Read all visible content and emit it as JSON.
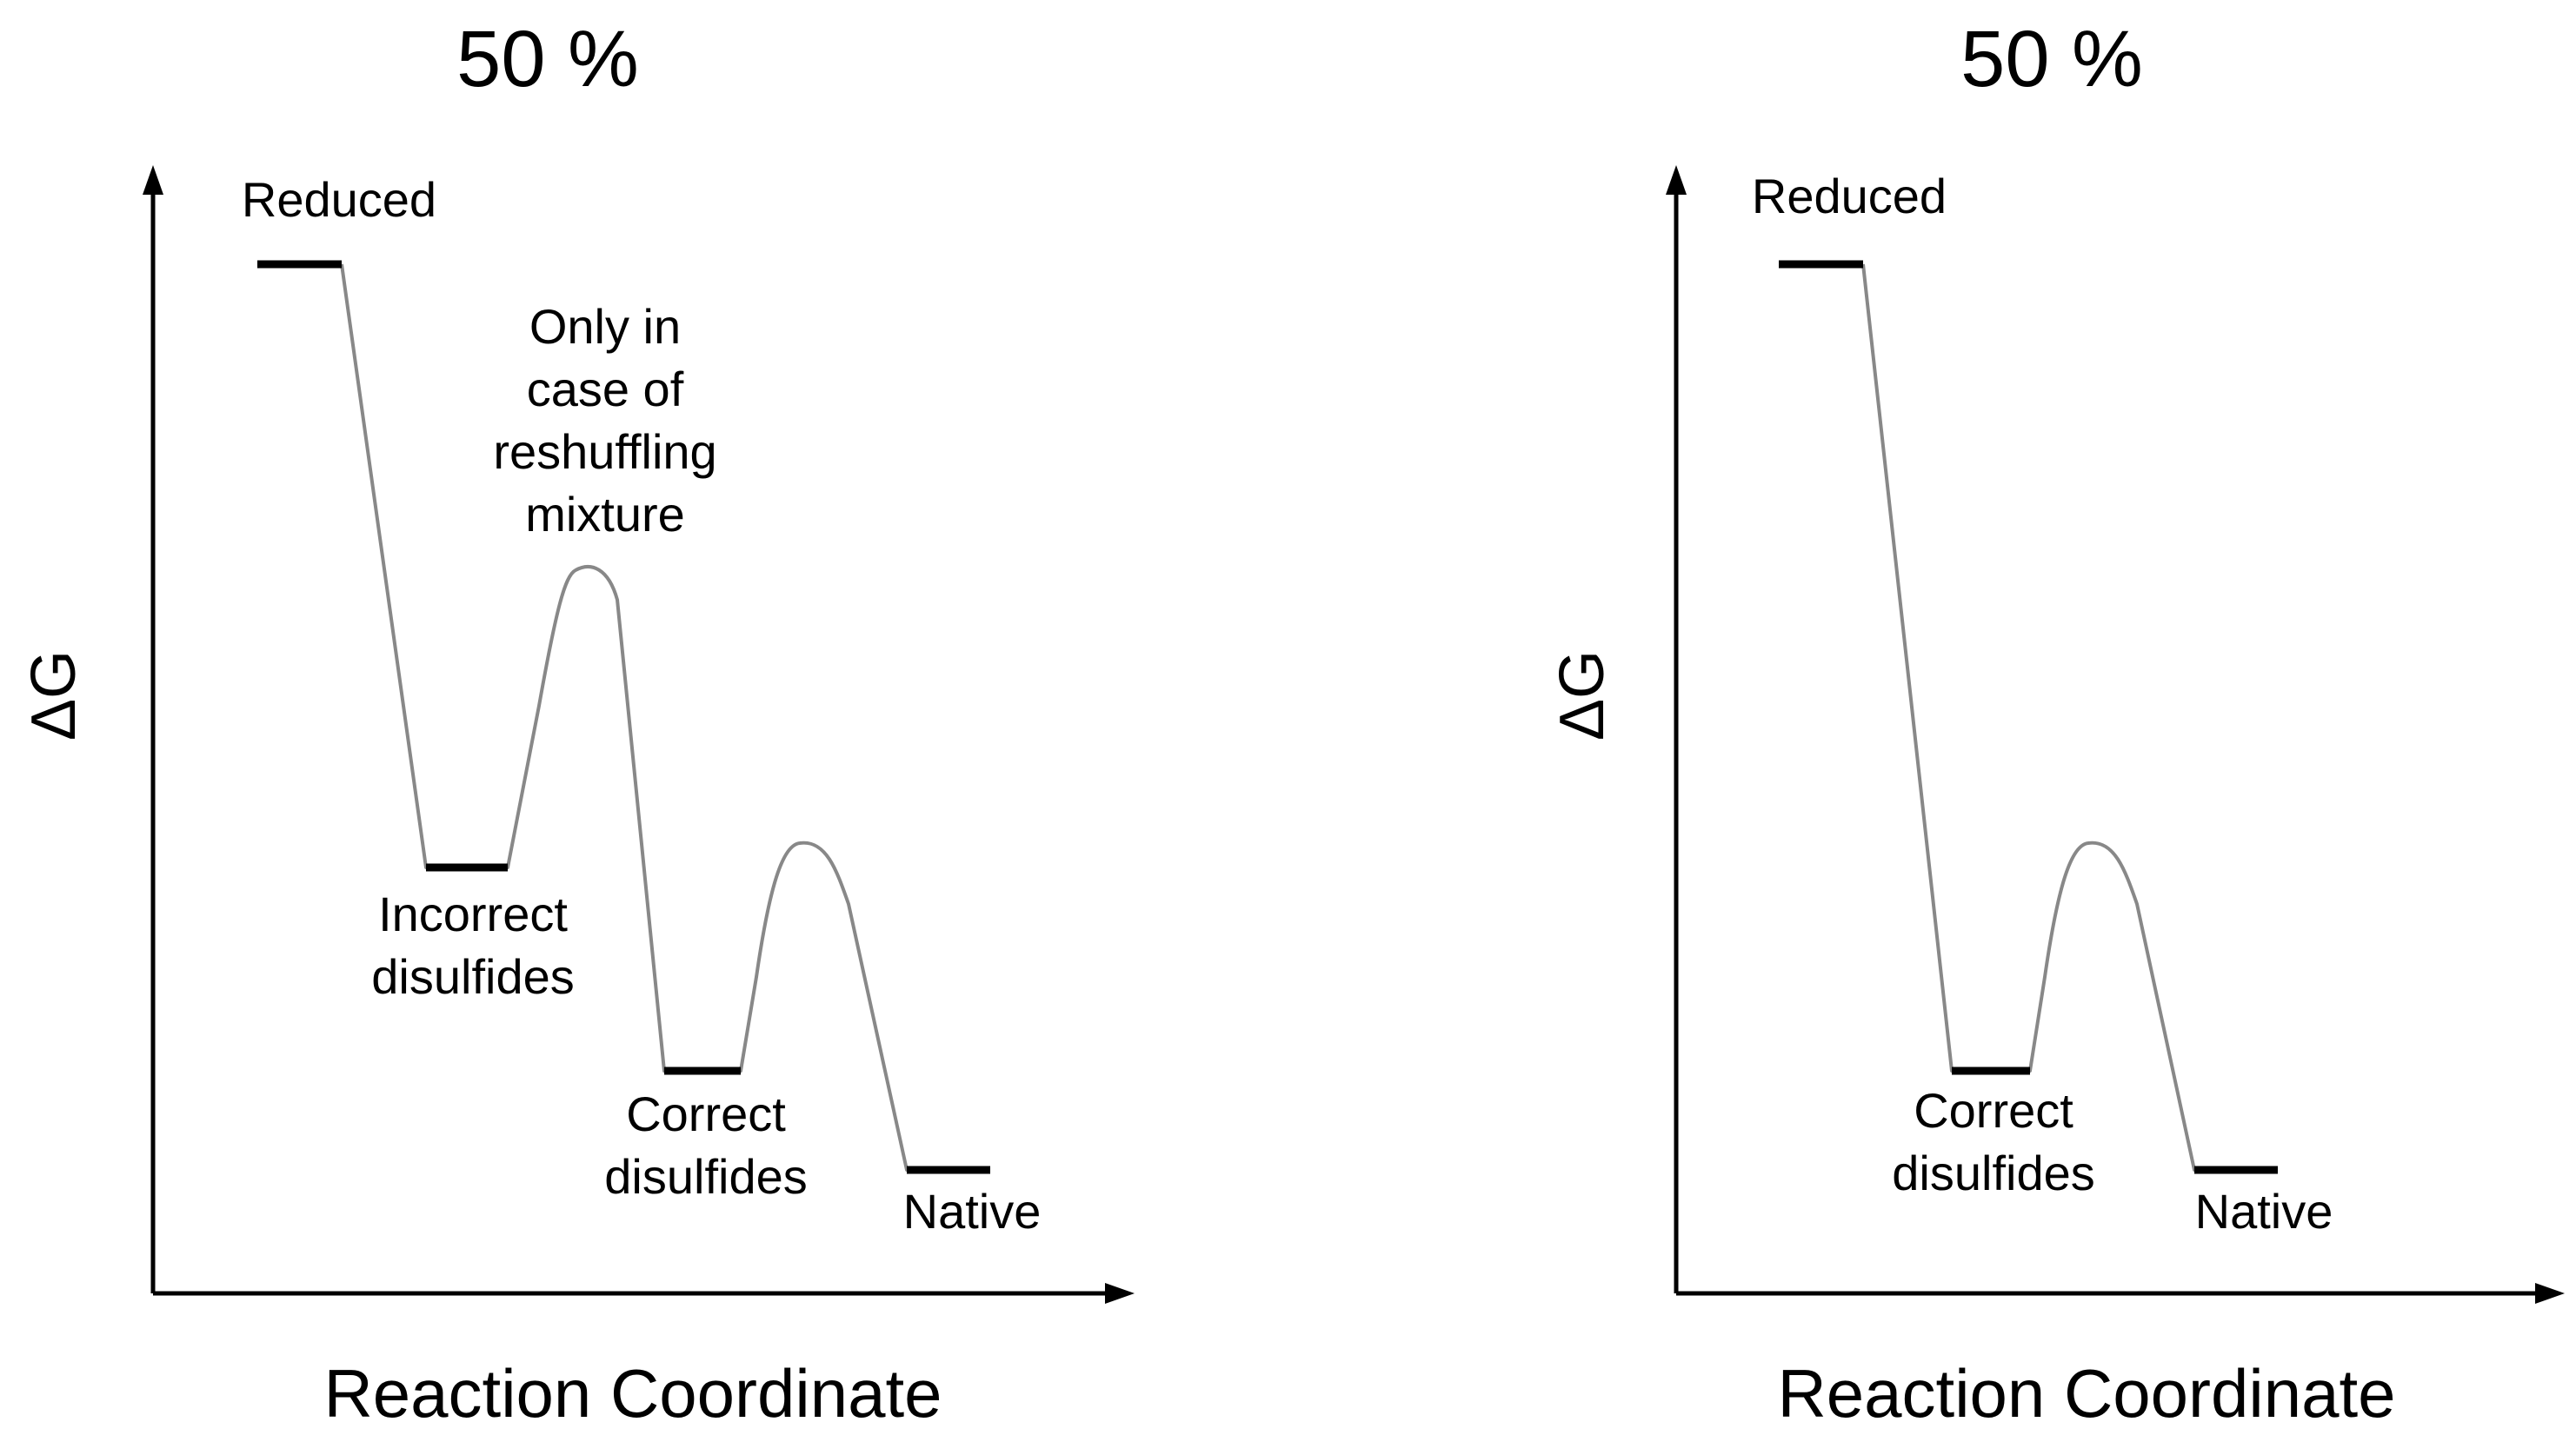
{
  "figure": {
    "panels": [
      {
        "title": "50 %",
        "y_axis_label": "ΔG",
        "x_axis_label": "Reaction Coordinate",
        "states": {
          "reduced": "Reduced",
          "incorrect": "Incorrect\ndisulfides",
          "barrier_note": "Only in\ncase of\nreshuffling\nmixture",
          "correct": "Correct\ndisulfides",
          "native": "Native"
        }
      },
      {
        "title": "50 %",
        "y_axis_label": "ΔG",
        "x_axis_label": "Reaction Coordinate",
        "states": {
          "reduced": "Reduced",
          "correct": "Correct\ndisulfides",
          "native": "Native"
        }
      }
    ],
    "colors": {
      "axis": "#000000",
      "level": "#000000",
      "curve": "#888888",
      "text": "#000000"
    }
  }
}
